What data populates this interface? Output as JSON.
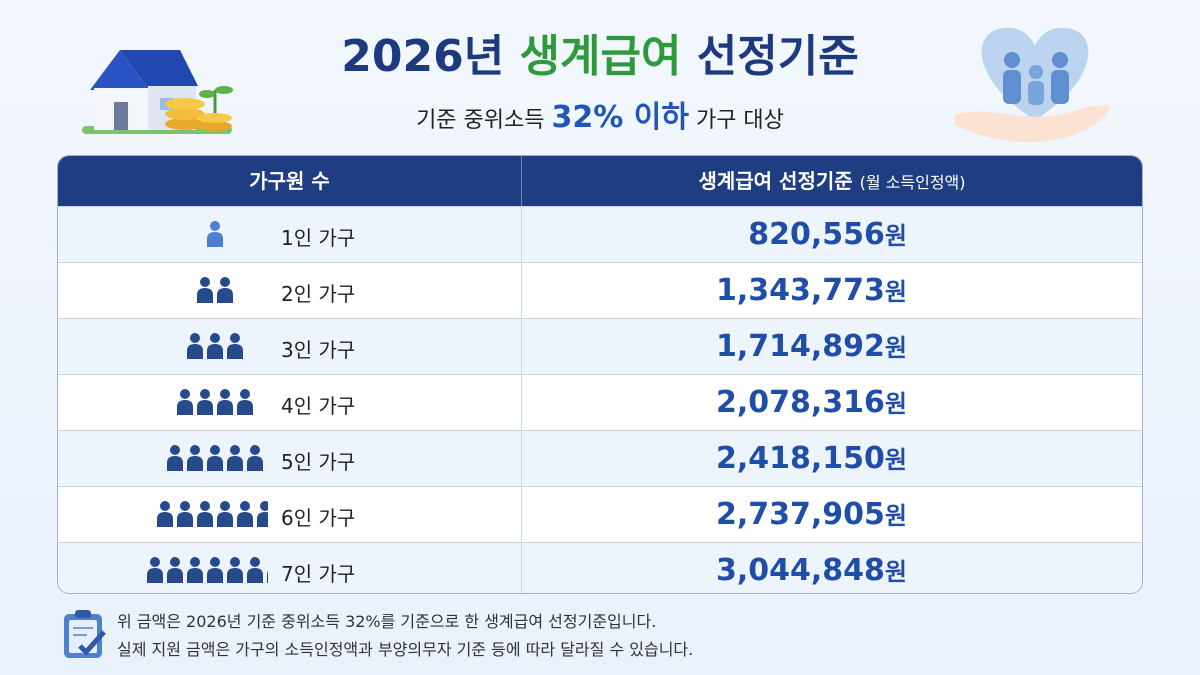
{
  "header": {
    "title": {
      "prefix": "2026년",
      "highlight": "생계급여",
      "suffix": "선정기준"
    },
    "subtitle": {
      "prefix": "기준 중위소득",
      "highlight": "32% 이하",
      "suffix": "가구 대상"
    }
  },
  "table": {
    "columns": {
      "household": "가구원 수",
      "standard": "생계급여 선정기준",
      "standard_note": "(월 소득인정액)"
    },
    "rows": [
      {
        "label": "1인 가구",
        "amount": "820,556",
        "unit": "원"
      },
      {
        "label": "2인 가구",
        "amount": "1,343,773",
        "unit": "원"
      },
      {
        "label": "3인 가구",
        "amount": "1,714,892",
        "unit": "원"
      },
      {
        "label": "4인 가구",
        "amount": "2,078,316",
        "unit": "원"
      },
      {
        "label": "5인 가구",
        "amount": "2,418,150",
        "unit": "원"
      },
      {
        "label": "6인 가구",
        "amount": "2,737,905",
        "unit": "원"
      },
      {
        "label": "7인 가구",
        "amount": "3,044,848",
        "unit": "원"
      }
    ]
  },
  "notes": [
    "위 금액은 2026년 기준 중위소득 32%를 기준으로 한 생계급여 선정기준입니다.",
    "실제 지원 금액은 가구의 소득인정액과 부양의무자 기준 등에 따라 달라질 수 있습니다."
  ]
}
